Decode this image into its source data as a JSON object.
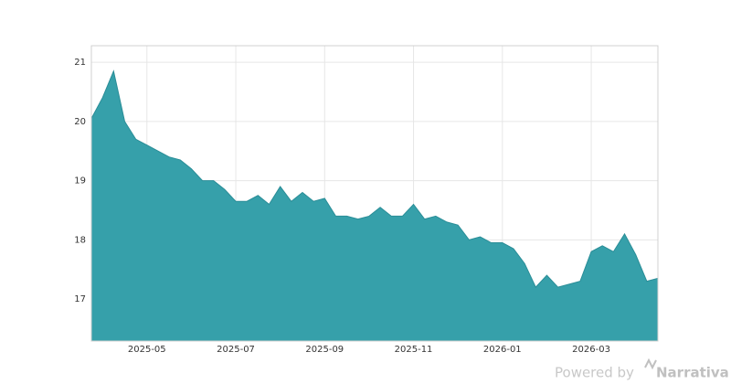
{
  "chart_data": {
    "type": "area",
    "categories": [
      null,
      null,
      null,
      null,
      null,
      "2025-05",
      null,
      null,
      null,
      null,
      null,
      null,
      null,
      "2025-07",
      null,
      null,
      null,
      null,
      null,
      null,
      null,
      "2025-09",
      null,
      null,
      null,
      null,
      null,
      null,
      null,
      "2025-11",
      null,
      null,
      null,
      null,
      null,
      null,
      null,
      "2026-01",
      null,
      null,
      null,
      null,
      null,
      null,
      null,
      "2026-03",
      null,
      null,
      null,
      null,
      null,
      null
    ],
    "values": [
      20.05,
      20.4,
      20.85,
      20.0,
      19.7,
      19.6,
      19.5,
      19.4,
      19.35,
      19.2,
      19.0,
      19.0,
      18.85,
      18.65,
      18.65,
      18.75,
      18.6,
      18.9,
      18.65,
      18.8,
      18.65,
      18.7,
      18.4,
      18.4,
      18.35,
      18.4,
      18.55,
      18.4,
      18.4,
      18.6,
      18.35,
      18.4,
      18.3,
      18.25,
      18.0,
      18.05,
      17.95,
      17.95,
      17.85,
      17.6,
      17.2,
      17.4,
      17.2,
      17.25,
      17.3,
      17.8,
      17.9,
      17.8,
      18.1,
      17.75,
      17.3,
      17.35
    ],
    "color": "#36a0aa",
    "ylim": [
      16.29,
      21.28
    ],
    "yticks": [
      17,
      18,
      19,
      20,
      21
    ],
    "grid": true
  },
  "footer": {
    "text": "Powered by",
    "brand": "Narrativa"
  }
}
